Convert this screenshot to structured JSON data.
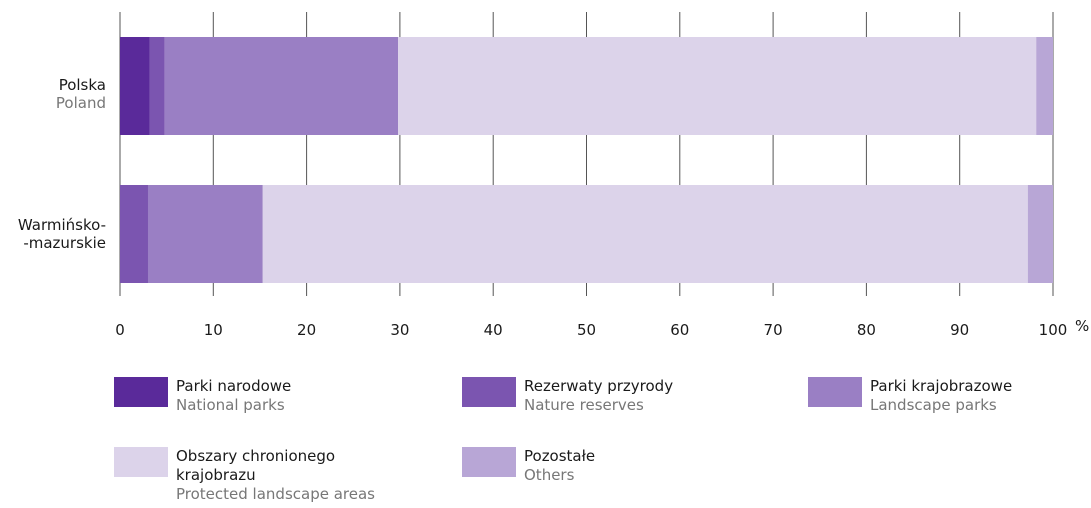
{
  "chart_data": {
    "type": "bar",
    "orientation": "horizontal",
    "stacked": true,
    "categories": [
      {
        "primary": "Polska",
        "secondary": "Poland"
      },
      {
        "primary": "Warmińsko-",
        "secondary": "-mazurskie"
      }
    ],
    "series": [
      {
        "name": "Parki narodowe",
        "name_en": "National parks",
        "color": "#5a2a9a",
        "values": [
          3.2,
          0
        ]
      },
      {
        "name": "Rezerwaty przyrody",
        "name_en": "Nature reserves",
        "color": "#7b55b0",
        "values": [
          1.6,
          3.0
        ]
      },
      {
        "name": "Parki krajobrazowe",
        "name_en": "Landscape parks",
        "color": "#9a7fc4",
        "values": [
          25.0,
          12.3
        ]
      },
      {
        "name": "Obszary chronionego krajobrazu",
        "name_en": "Protected landscape areas",
        "color": "#dcd3ea",
        "values": [
          68.4,
          82.0
        ]
      },
      {
        "name": "Pozostałe",
        "name_en": "Others",
        "color": "#b8a6d6",
        "values": [
          1.8,
          2.7
        ]
      }
    ],
    "xlim": [
      0,
      100
    ],
    "xticks": [
      "0",
      "10",
      "20",
      "30",
      "40",
      "50",
      "60",
      "70",
      "80",
      "90",
      "100"
    ],
    "unit": "%",
    "grid": true,
    "legend_position": "bottom"
  },
  "legend": {
    "items": [
      {
        "lines": [
          "Parki narodowe"
        ],
        "sub": "National parks",
        "color": "#5a2a9a"
      },
      {
        "lines": [
          "Rezerwaty przyrody"
        ],
        "sub": "Nature reserves",
        "color": "#7b55b0"
      },
      {
        "lines": [
          "Parki krajobrazowe"
        ],
        "sub": "Landscape parks",
        "color": "#9a7fc4"
      },
      {
        "lines": [
          "Obszary chronionego",
          "krajobrazu"
        ],
        "sub": "Protected landscape areas",
        "color": "#dcd3ea"
      },
      {
        "lines": [
          "Pozostałe"
        ],
        "sub": "Others",
        "color": "#b8a6d6"
      }
    ]
  }
}
